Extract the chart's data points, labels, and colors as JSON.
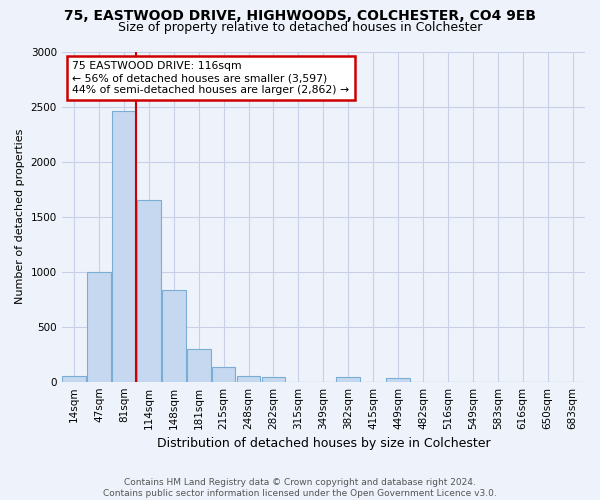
{
  "title_line1": "75, EASTWOOD DRIVE, HIGHWOODS, COLCHESTER, CO4 9EB",
  "title_line2": "Size of property relative to detached houses in Colchester",
  "xlabel": "Distribution of detached houses by size in Colchester",
  "ylabel": "Number of detached properties",
  "categories": [
    "14sqm",
    "47sqm",
    "81sqm",
    "114sqm",
    "148sqm",
    "181sqm",
    "215sqm",
    "248sqm",
    "282sqm",
    "315sqm",
    "349sqm",
    "382sqm",
    "415sqm",
    "449sqm",
    "482sqm",
    "516sqm",
    "549sqm",
    "583sqm",
    "616sqm",
    "650sqm",
    "683sqm"
  ],
  "values": [
    55,
    1000,
    2460,
    1650,
    835,
    300,
    130,
    50,
    45,
    0,
    0,
    45,
    0,
    30,
    0,
    0,
    0,
    0,
    0,
    0,
    0
  ],
  "bar_color": "#c5d8f0",
  "bar_edge_color": "#7aadd4",
  "grid_color": "#c8cfe8",
  "background_color": "#eef2fa",
  "vline_color": "#cc0000",
  "vline_x": 2.5,
  "annotation_text": "75 EASTWOOD DRIVE: 116sqm\n← 56% of detached houses are smaller (3,597)\n44% of semi-detached houses are larger (2,862) →",
  "annotation_box_color": "#ffffff",
  "annotation_box_edge": "#cc0000",
  "footer_line1": "Contains HM Land Registry data © Crown copyright and database right 2024.",
  "footer_line2": "Contains public sector information licensed under the Open Government Licence v3.0.",
  "ylim": [
    0,
    3000
  ],
  "yticks": [
    0,
    500,
    1000,
    1500,
    2000,
    2500,
    3000
  ],
  "title1_fontsize": 10,
  "title2_fontsize": 9,
  "ylabel_fontsize": 8,
  "xlabel_fontsize": 9,
  "tick_fontsize": 7.5,
  "footer_fontsize": 6.5
}
